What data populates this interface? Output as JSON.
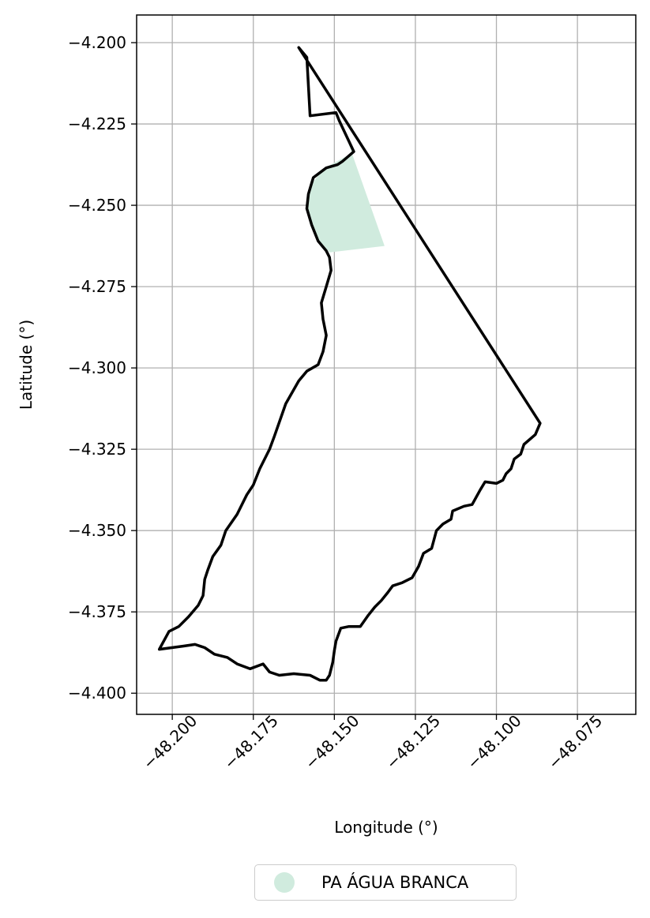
{
  "chart_data": {
    "type": "map",
    "xlabel": "Longitude (°)",
    "ylabel": "Latitude (°)",
    "xlim": [
      -48.211,
      -48.057
    ],
    "ylim": [
      -4.4065,
      -4.1915
    ],
    "grid": true,
    "x_ticks": [
      -48.2,
      -48.175,
      -48.15,
      -48.125,
      -48.1,
      -48.075
    ],
    "x_tick_labels": [
      "−48.200",
      "−48.175",
      "−48.150",
      "−48.125",
      "−48.100",
      "−48.075"
    ],
    "y_ticks": [
      -4.2,
      -4.225,
      -4.25,
      -4.275,
      -4.3,
      -4.325,
      -4.35,
      -4.375,
      -4.4
    ],
    "y_tick_labels": [
      "−4.200",
      "−4.225",
      "−4.250",
      "−4.275",
      "−4.300",
      "−4.325",
      "−4.350",
      "−4.375",
      "−4.400"
    ],
    "boundary": {
      "stroke": "#000000",
      "coords": [
        [
          -48.161,
          -4.2015
        ],
        [
          -48.0865,
          -4.317
        ],
        [
          -48.088,
          -4.3205
        ],
        [
          -48.0915,
          -4.3235
        ],
        [
          -48.0925,
          -4.3265
        ],
        [
          -48.0945,
          -4.328
        ],
        [
          -48.0955,
          -4.331
        ],
        [
          -48.097,
          -4.3325
        ],
        [
          -48.098,
          -4.3345
        ],
        [
          -48.1,
          -4.3355
        ],
        [
          -48.1035,
          -4.335
        ],
        [
          -48.105,
          -4.3375
        ],
        [
          -48.1075,
          -4.342
        ],
        [
          -48.11,
          -4.3425
        ],
        [
          -48.1135,
          -4.344
        ],
        [
          -48.114,
          -4.3465
        ],
        [
          -48.1165,
          -4.348
        ],
        [
          -48.1185,
          -4.35
        ],
        [
          -48.12,
          -4.3555
        ],
        [
          -48.1225,
          -4.357
        ],
        [
          -48.124,
          -4.361
        ],
        [
          -48.126,
          -4.3645
        ],
        [
          -48.129,
          -4.366
        ],
        [
          -48.132,
          -4.367
        ],
        [
          -48.1335,
          -4.369
        ],
        [
          -48.1355,
          -4.3715
        ],
        [
          -48.1375,
          -4.3735
        ],
        [
          -48.1395,
          -4.376
        ],
        [
          -48.142,
          -4.3795
        ],
        [
          -48.1455,
          -4.3795
        ],
        [
          -48.148,
          -4.38
        ],
        [
          -48.1495,
          -4.384
        ],
        [
          -48.15,
          -4.387
        ],
        [
          -48.1505,
          -4.3905
        ],
        [
          -48.1515,
          -4.3945
        ],
        [
          -48.1525,
          -4.396
        ],
        [
          -48.1545,
          -4.396
        ],
        [
          -48.1575,
          -4.3945
        ],
        [
          -48.1625,
          -4.394
        ],
        [
          -48.167,
          -4.3945
        ],
        [
          -48.17,
          -4.3935
        ],
        [
          -48.172,
          -4.391
        ],
        [
          -48.176,
          -4.3925
        ],
        [
          -48.18,
          -4.391
        ],
        [
          -48.183,
          -4.389
        ],
        [
          -48.187,
          -4.388
        ],
        [
          -48.19,
          -4.386
        ],
        [
          -48.193,
          -4.385
        ],
        [
          -48.1965,
          -4.3855
        ],
        [
          -48.204,
          -4.3865
        ],
        [
          -48.201,
          -4.381
        ],
        [
          -48.198,
          -4.3795
        ],
        [
          -48.195,
          -4.3765
        ],
        [
          -48.192,
          -4.373
        ],
        [
          -48.1905,
          -4.37
        ],
        [
          -48.19,
          -4.365
        ],
        [
          -48.189,
          -4.362
        ],
        [
          -48.1875,
          -4.358
        ],
        [
          -48.185,
          -4.3545
        ],
        [
          -48.1835,
          -4.35
        ],
        [
          -48.18,
          -4.345
        ],
        [
          -48.177,
          -4.339
        ],
        [
          -48.175,
          -4.336
        ],
        [
          -48.173,
          -4.331
        ],
        [
          -48.17,
          -4.325
        ],
        [
          -48.1685,
          -4.321
        ],
        [
          -48.165,
          -4.311
        ],
        [
          -48.161,
          -4.304
        ],
        [
          -48.1585,
          -4.301
        ],
        [
          -48.155,
          -4.299
        ],
        [
          -48.1535,
          -4.295
        ],
        [
          -48.1525,
          -4.29
        ],
        [
          -48.1535,
          -4.285
        ],
        [
          -48.154,
          -4.28
        ],
        [
          -48.1525,
          -4.275
        ],
        [
          -48.151,
          -4.27
        ],
        [
          -48.1515,
          -4.266
        ],
        [
          -48.1525,
          -4.264
        ],
        [
          -48.155,
          -4.261
        ],
        [
          -48.157,
          -4.256
        ],
        [
          -48.1585,
          -4.251
        ],
        [
          -48.158,
          -4.2465
        ],
        [
          -48.1565,
          -4.2415
        ],
        [
          -48.1525,
          -4.2385
        ],
        [
          -48.149,
          -4.2375
        ],
        [
          -48.1475,
          -4.2365
        ],
        [
          -48.144,
          -4.2335
        ],
        [
          -48.1485,
          -4.224
        ],
        [
          -48.1495,
          -4.2215
        ],
        [
          -48.1575,
          -4.2225
        ],
        [
          -48.1585,
          -4.2045
        ],
        [
          -48.161,
          -4.2015
        ]
      ]
    },
    "series": [
      {
        "name": "PA ÁGUA BRANCA",
        "color": "#d0ebde",
        "coords": [
          [
            -48.149,
            -4.2215
          ],
          [
            -48.1345,
            -4.2625
          ],
          [
            -48.1515,
            -4.2645
          ],
          [
            -48.1545,
            -4.261
          ],
          [
            -48.1575,
            -4.256
          ],
          [
            -48.1585,
            -4.2505
          ],
          [
            -48.1575,
            -4.244
          ],
          [
            -48.153,
            -4.2385
          ],
          [
            -48.1455,
            -4.2345
          ],
          [
            -48.144,
            -4.2335
          ],
          [
            -48.149,
            -4.2215
          ]
        ]
      }
    ],
    "legend_position": "bottom"
  }
}
